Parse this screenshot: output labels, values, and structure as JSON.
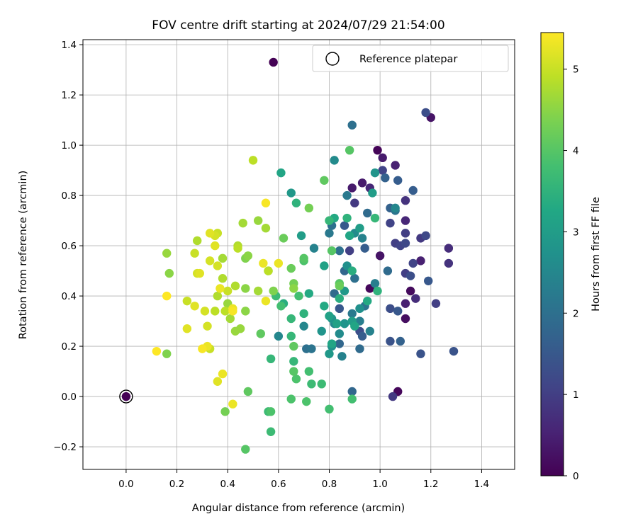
{
  "chart_data": {
    "type": "scatter",
    "title": "FOV centre drift starting at 2024/07/29 21:54:00",
    "xlabel": "Angular distance from reference (arcmin)",
    "ylabel": "Rotation from reference (arcmin)",
    "xlim": [
      -0.17,
      1.53
    ],
    "ylim": [
      -0.29,
      1.42
    ],
    "xticks": [
      0.0,
      0.2,
      0.4,
      0.6,
      0.8,
      1.0,
      1.2,
      1.4
    ],
    "yticks": [
      -0.2,
      0.0,
      0.2,
      0.4,
      0.6,
      0.8,
      1.0,
      1.2,
      1.4
    ],
    "xtick_labels": [
      "0.0",
      "0.2",
      "0.4",
      "0.6",
      "0.8",
      "1.0",
      "1.2",
      "1.4"
    ],
    "ytick_labels": [
      "−0.2",
      "0.0",
      "0.2",
      "0.4",
      "0.6",
      "0.8",
      "1.0",
      "1.2",
      "1.4"
    ],
    "grid": true,
    "legend": {
      "placement": "top-right",
      "entries": [
        {
          "label": "Reference platepar",
          "marker": "hollow-circle",
          "color": "#000000"
        }
      ]
    },
    "reference_point": {
      "x": 0.0,
      "y": 0.0
    },
    "colorbar": {
      "label": "Hours from first FF file",
      "colormap": "viridis",
      "range": [
        0,
        5.45
      ],
      "ticks": [
        0,
        1,
        2,
        3,
        4,
        5
      ],
      "tick_labels": [
        "0",
        "1",
        "2",
        "3",
        "4",
        "5"
      ]
    },
    "points": [
      {
        "x": 0.58,
        "y": 1.33,
        "c": 0.0
      },
      {
        "x": 0.99,
        "y": 0.98,
        "c": 0.05
      },
      {
        "x": 0.96,
        "y": 0.43,
        "c": 0.1
      },
      {
        "x": 1.07,
        "y": 0.02,
        "c": 0.1
      },
      {
        "x": 1.12,
        "y": 0.42,
        "c": 0.15
      },
      {
        "x": 1.1,
        "y": 0.31,
        "c": 0.2
      },
      {
        "x": 1.2,
        "y": 1.11,
        "c": 0.3
      },
      {
        "x": 1.0,
        "y": 0.56,
        "c": 0.3
      },
      {
        "x": 1.01,
        "y": 0.95,
        "c": 0.4
      },
      {
        "x": 0.93,
        "y": 0.85,
        "c": 0.4
      },
      {
        "x": 0.89,
        "y": 0.83,
        "c": 0.4
      },
      {
        "x": 1.06,
        "y": 0.92,
        "c": 0.5
      },
      {
        "x": 1.16,
        "y": 0.54,
        "c": 0.5
      },
      {
        "x": 1.1,
        "y": 0.37,
        "c": 0.5
      },
      {
        "x": 1.1,
        "y": 0.7,
        "c": 0.6
      },
      {
        "x": 0.96,
        "y": 0.83,
        "c": 0.6
      },
      {
        "x": 1.14,
        "y": 0.39,
        "c": 0.7
      },
      {
        "x": 1.27,
        "y": 0.59,
        "c": 0.7
      },
      {
        "x": 1.27,
        "y": 0.53,
        "c": 0.8
      },
      {
        "x": 1.1,
        "y": 0.78,
        "c": 0.8
      },
      {
        "x": 1.05,
        "y": 0.0,
        "c": 0.9
      },
      {
        "x": 1.16,
        "y": 0.63,
        "c": 0.9
      },
      {
        "x": 0.9,
        "y": 0.77,
        "c": 0.9
      },
      {
        "x": 1.22,
        "y": 0.37,
        "c": 1.0
      },
      {
        "x": 1.06,
        "y": 0.61,
        "c": 1.0
      },
      {
        "x": 0.88,
        "y": 0.58,
        "c": 1.0
      },
      {
        "x": 1.1,
        "y": 0.49,
        "c": 1.0
      },
      {
        "x": 1.1,
        "y": 0.65,
        "c": 1.0
      },
      {
        "x": 1.13,
        "y": 0.53,
        "c": 1.1
      },
      {
        "x": 1.04,
        "y": 0.69,
        "c": 1.1
      },
      {
        "x": 1.01,
        "y": 0.9,
        "c": 1.1
      },
      {
        "x": 1.08,
        "y": 0.6,
        "c": 1.1
      },
      {
        "x": 1.1,
        "y": 0.61,
        "c": 1.2
      },
      {
        "x": 1.18,
        "y": 0.64,
        "c": 1.2
      },
      {
        "x": 1.12,
        "y": 0.48,
        "c": 1.3
      },
      {
        "x": 1.04,
        "y": 0.35,
        "c": 1.3
      },
      {
        "x": 0.92,
        "y": 0.26,
        "c": 1.3
      },
      {
        "x": 1.18,
        "y": 1.13,
        "c": 1.3
      },
      {
        "x": 1.04,
        "y": 0.22,
        "c": 1.4
      },
      {
        "x": 1.16,
        "y": 0.17,
        "c": 1.4
      },
      {
        "x": 1.29,
        "y": 0.18,
        "c": 1.4
      },
      {
        "x": 1.19,
        "y": 0.46,
        "c": 1.5
      },
      {
        "x": 1.07,
        "y": 0.34,
        "c": 1.5
      },
      {
        "x": 0.86,
        "y": 0.68,
        "c": 1.5
      },
      {
        "x": 0.84,
        "y": 0.35,
        "c": 1.5
      },
      {
        "x": 1.13,
        "y": 0.82,
        "c": 1.6
      },
      {
        "x": 1.07,
        "y": 0.86,
        "c": 1.6
      },
      {
        "x": 0.94,
        "y": 0.59,
        "c": 1.6
      },
      {
        "x": 0.93,
        "y": 0.24,
        "c": 1.6
      },
      {
        "x": 1.04,
        "y": 0.75,
        "c": 1.7
      },
      {
        "x": 1.08,
        "y": 0.22,
        "c": 1.7
      },
      {
        "x": 1.02,
        "y": 0.87,
        "c": 1.7
      },
      {
        "x": 0.89,
        "y": 0.02,
        "c": 1.8
      },
      {
        "x": 0.84,
        "y": 0.21,
        "c": 1.8
      },
      {
        "x": 0.86,
        "y": 0.5,
        "c": 1.8
      },
      {
        "x": 0.92,
        "y": 0.19,
        "c": 1.9
      },
      {
        "x": 0.95,
        "y": 0.73,
        "c": 1.9
      },
      {
        "x": 0.82,
        "y": 0.41,
        "c": 1.9
      },
      {
        "x": 1.03,
        "y": 0.5,
        "c": 1.9
      },
      {
        "x": 0.81,
        "y": 0.68,
        "c": 2.0
      },
      {
        "x": 0.89,
        "y": 1.08,
        "c": 2.0
      },
      {
        "x": 0.84,
        "y": 0.58,
        "c": 2.0
      },
      {
        "x": 0.71,
        "y": 0.19,
        "c": 2.0
      },
      {
        "x": 0.9,
        "y": 0.47,
        "c": 2.0
      },
      {
        "x": 1.06,
        "y": 0.74,
        "c": 2.1
      },
      {
        "x": 0.94,
        "y": 0.36,
        "c": 2.1
      },
      {
        "x": 0.73,
        "y": 0.19,
        "c": 2.1
      },
      {
        "x": 0.8,
        "y": 0.65,
        "c": 2.2
      },
      {
        "x": 0.89,
        "y": 0.33,
        "c": 2.2
      },
      {
        "x": 0.87,
        "y": 0.8,
        "c": 2.2
      },
      {
        "x": 0.86,
        "y": 0.29,
        "c": 2.3
      },
      {
        "x": 0.98,
        "y": 0.45,
        "c": 2.3
      },
      {
        "x": 0.92,
        "y": 0.3,
        "c": 2.3
      },
      {
        "x": 0.85,
        "y": 0.16,
        "c": 2.4
      },
      {
        "x": 0.96,
        "y": 0.26,
        "c": 2.4
      },
      {
        "x": 0.74,
        "y": 0.59,
        "c": 2.4
      },
      {
        "x": 0.93,
        "y": 0.63,
        "c": 2.4
      },
      {
        "x": 1.06,
        "y": 0.75,
        "c": 2.5
      },
      {
        "x": 0.82,
        "y": 0.29,
        "c": 2.5
      },
      {
        "x": 0.6,
        "y": 0.24,
        "c": 2.5
      },
      {
        "x": 0.7,
        "y": 0.28,
        "c": 2.5
      },
      {
        "x": 0.9,
        "y": 0.65,
        "c": 2.6
      },
      {
        "x": 0.84,
        "y": 0.25,
        "c": 2.6
      },
      {
        "x": 0.82,
        "y": 0.94,
        "c": 2.6
      },
      {
        "x": 0.87,
        "y": 0.52,
        "c": 2.7
      },
      {
        "x": 0.81,
        "y": 0.2,
        "c": 2.7
      },
      {
        "x": 0.92,
        "y": 0.35,
        "c": 2.7
      },
      {
        "x": 0.98,
        "y": 0.89,
        "c": 2.8
      },
      {
        "x": 0.81,
        "y": 0.31,
        "c": 2.8
      },
      {
        "x": 0.77,
        "y": 0.26,
        "c": 2.8
      },
      {
        "x": 0.86,
        "y": 0.29,
        "c": 2.8
      },
      {
        "x": 0.86,
        "y": 0.42,
        "c": 2.9
      },
      {
        "x": 0.65,
        "y": 0.81,
        "c": 2.9
      },
      {
        "x": 0.8,
        "y": 0.17,
        "c": 2.9
      },
      {
        "x": 0.97,
        "y": 0.81,
        "c": 3.0
      },
      {
        "x": 0.89,
        "y": 0.3,
        "c": 3.0
      },
      {
        "x": 0.92,
        "y": 0.67,
        "c": 3.0
      },
      {
        "x": 0.69,
        "y": 0.64,
        "c": 3.0
      },
      {
        "x": 0.78,
        "y": 0.52,
        "c": 3.1
      },
      {
        "x": 0.8,
        "y": 0.32,
        "c": 3.1
      },
      {
        "x": 0.83,
        "y": 0.29,
        "c": 3.1
      },
      {
        "x": 0.61,
        "y": 0.89,
        "c": 3.2
      },
      {
        "x": 0.88,
        "y": 0.64,
        "c": 3.2
      },
      {
        "x": 0.9,
        "y": 0.28,
        "c": 3.2
      },
      {
        "x": 0.81,
        "y": 0.21,
        "c": 3.2
      },
      {
        "x": 0.82,
        "y": 0.71,
        "c": 3.3
      },
      {
        "x": 0.72,
        "y": 0.41,
        "c": 3.3
      },
      {
        "x": 0.95,
        "y": 0.38,
        "c": 3.3
      },
      {
        "x": 0.78,
        "y": 0.36,
        "c": 3.3
      },
      {
        "x": 0.89,
        "y": 0.5,
        "c": 3.4
      },
      {
        "x": 0.62,
        "y": 0.37,
        "c": 3.4
      },
      {
        "x": 0.84,
        "y": 0.39,
        "c": 3.4
      },
      {
        "x": 0.7,
        "y": 0.33,
        "c": 3.5
      },
      {
        "x": 0.99,
        "y": 0.42,
        "c": 3.5
      },
      {
        "x": 0.67,
        "y": 0.77,
        "c": 3.5
      },
      {
        "x": 0.87,
        "y": 0.71,
        "c": 3.5
      },
      {
        "x": 0.8,
        "y": 0.7,
        "c": 3.6
      },
      {
        "x": 0.57,
        "y": 0.15,
        "c": 3.6
      },
      {
        "x": 0.66,
        "y": 0.14,
        "c": 3.6
      },
      {
        "x": 0.65,
        "y": 0.31,
        "c": 3.6
      },
      {
        "x": 0.98,
        "y": 0.71,
        "c": 3.6
      },
      {
        "x": 0.65,
        "y": 0.24,
        "c": 3.6
      },
      {
        "x": 0.73,
        "y": 0.05,
        "c": 3.7
      },
      {
        "x": 0.77,
        "y": 0.05,
        "c": 3.7
      },
      {
        "x": 0.59,
        "y": 0.4,
        "c": 3.7
      },
      {
        "x": 0.56,
        "y": -0.06,
        "c": 3.7
      },
      {
        "x": 0.57,
        "y": -0.14,
        "c": 3.7
      },
      {
        "x": 0.8,
        "y": -0.05,
        "c": 3.8
      },
      {
        "x": 0.68,
        "y": 0.4,
        "c": 3.8
      },
      {
        "x": 0.89,
        "y": -0.01,
        "c": 3.8
      },
      {
        "x": 0.61,
        "y": 0.36,
        "c": 3.8
      },
      {
        "x": 0.72,
        "y": 0.1,
        "c": 3.8
      },
      {
        "x": 0.7,
        "y": 0.54,
        "c": 3.9
      },
      {
        "x": 0.57,
        "y": -0.06,
        "c": 3.9
      },
      {
        "x": 0.65,
        "y": -0.01,
        "c": 3.9
      },
      {
        "x": 0.71,
        "y": -0.02,
        "c": 3.9
      },
      {
        "x": 0.67,
        "y": 0.07,
        "c": 3.9
      },
      {
        "x": 0.47,
        "y": -0.21,
        "c": 4.0
      },
      {
        "x": 0.88,
        "y": 0.98,
        "c": 4.0
      },
      {
        "x": 0.84,
        "y": 0.45,
        "c": 4.0
      },
      {
        "x": 0.7,
        "y": 0.55,
        "c": 4.0
      },
      {
        "x": 0.66,
        "y": 0.1,
        "c": 4.0
      },
      {
        "x": 0.81,
        "y": 0.58,
        "c": 4.0
      },
      {
        "x": 0.78,
        "y": 0.86,
        "c": 4.1
      },
      {
        "x": 0.53,
        "y": 0.25,
        "c": 4.1
      },
      {
        "x": 0.66,
        "y": 0.2,
        "c": 4.1
      },
      {
        "x": 0.48,
        "y": 0.02,
        "c": 4.1
      },
      {
        "x": 0.84,
        "y": 0.44,
        "c": 4.2
      },
      {
        "x": 0.65,
        "y": 0.51,
        "c": 4.2
      },
      {
        "x": 0.62,
        "y": 0.63,
        "c": 4.2
      },
      {
        "x": 0.56,
        "y": 0.5,
        "c": 4.3
      },
      {
        "x": 0.72,
        "y": 0.75,
        "c": 4.3
      },
      {
        "x": 0.39,
        "y": -0.06,
        "c": 4.3
      },
      {
        "x": 0.66,
        "y": 0.45,
        "c": 4.3
      },
      {
        "x": 0.58,
        "y": 0.42,
        "c": 4.4
      },
      {
        "x": 0.16,
        "y": 0.17,
        "c": 4.4
      },
      {
        "x": 0.47,
        "y": 0.55,
        "c": 4.4
      },
      {
        "x": 0.17,
        "y": 0.49,
        "c": 4.5
      },
      {
        "x": 0.47,
        "y": 0.43,
        "c": 4.5
      },
      {
        "x": 0.48,
        "y": 0.56,
        "c": 4.5
      },
      {
        "x": 0.66,
        "y": 0.43,
        "c": 4.5
      },
      {
        "x": 0.47,
        "y": 0.34,
        "c": 4.5
      },
      {
        "x": 0.52,
        "y": 0.7,
        "c": 4.6
      },
      {
        "x": 0.4,
        "y": 0.37,
        "c": 4.6
      },
      {
        "x": 0.16,
        "y": 0.57,
        "c": 4.6
      },
      {
        "x": 0.45,
        "y": 0.27,
        "c": 4.6
      },
      {
        "x": 0.43,
        "y": 0.26,
        "c": 4.6
      },
      {
        "x": 0.41,
        "y": 0.31,
        "c": 4.7
      },
      {
        "x": 0.38,
        "y": 0.55,
        "c": 4.7
      },
      {
        "x": 0.46,
        "y": 0.69,
        "c": 4.7
      },
      {
        "x": 0.55,
        "y": 0.67,
        "c": 4.7
      },
      {
        "x": 0.52,
        "y": 0.42,
        "c": 4.7
      },
      {
        "x": 0.44,
        "y": 0.6,
        "c": 4.8
      },
      {
        "x": 0.38,
        "y": 0.47,
        "c": 4.8
      },
      {
        "x": 0.43,
        "y": 0.44,
        "c": 4.8
      },
      {
        "x": 0.36,
        "y": 0.4,
        "c": 4.8
      },
      {
        "x": 0.28,
        "y": 0.62,
        "c": 4.8
      },
      {
        "x": 0.35,
        "y": 0.34,
        "c": 4.9
      },
      {
        "x": 0.5,
        "y": 0.94,
        "c": 4.9
      },
      {
        "x": 0.56,
        "y": 0.5,
        "c": 4.9
      },
      {
        "x": 0.39,
        "y": 0.34,
        "c": 4.9
      },
      {
        "x": 0.44,
        "y": 0.59,
        "c": 4.9
      },
      {
        "x": 0.27,
        "y": 0.57,
        "c": 5.0
      },
      {
        "x": 0.24,
        "y": 0.38,
        "c": 5.0
      },
      {
        "x": 0.33,
        "y": 0.19,
        "c": 5.0
      },
      {
        "x": 0.36,
        "y": 0.65,
        "c": 5.0
      },
      {
        "x": 0.4,
        "y": 0.42,
        "c": 5.0
      },
      {
        "x": 0.28,
        "y": 0.49,
        "c": 5.1
      },
      {
        "x": 0.35,
        "y": 0.64,
        "c": 5.1
      },
      {
        "x": 0.31,
        "y": 0.34,
        "c": 5.1
      },
      {
        "x": 0.33,
        "y": 0.54,
        "c": 5.1
      },
      {
        "x": 0.32,
        "y": 0.28,
        "c": 5.1
      },
      {
        "x": 0.36,
        "y": 0.52,
        "c": 5.1
      },
      {
        "x": 0.24,
        "y": 0.27,
        "c": 5.2
      },
      {
        "x": 0.27,
        "y": 0.36,
        "c": 5.2
      },
      {
        "x": 0.29,
        "y": 0.49,
        "c": 5.2
      },
      {
        "x": 0.33,
        "y": 0.65,
        "c": 5.2
      },
      {
        "x": 0.35,
        "y": 0.6,
        "c": 5.2
      },
      {
        "x": 0.36,
        "y": 0.06,
        "c": 5.2
      },
      {
        "x": 0.42,
        "y": 0.35,
        "c": 5.3
      },
      {
        "x": 0.32,
        "y": 0.2,
        "c": 5.3
      },
      {
        "x": 0.54,
        "y": 0.53,
        "c": 5.3
      },
      {
        "x": 0.37,
        "y": 0.43,
        "c": 5.3
      },
      {
        "x": 0.42,
        "y": -0.03,
        "c": 5.3
      },
      {
        "x": 0.38,
        "y": 0.09,
        "c": 5.3
      },
      {
        "x": 0.6,
        "y": 0.53,
        "c": 5.3
      },
      {
        "x": 0.55,
        "y": 0.38,
        "c": 5.3
      },
      {
        "x": 0.42,
        "y": 0.34,
        "c": 5.4
      },
      {
        "x": 0.3,
        "y": 0.19,
        "c": 5.4
      },
      {
        "x": 0.55,
        "y": 0.77,
        "c": 5.4
      },
      {
        "x": 0.16,
        "y": 0.4,
        "c": 5.45
      },
      {
        "x": 0.12,
        "y": 0.18,
        "c": 5.45
      }
    ]
  }
}
